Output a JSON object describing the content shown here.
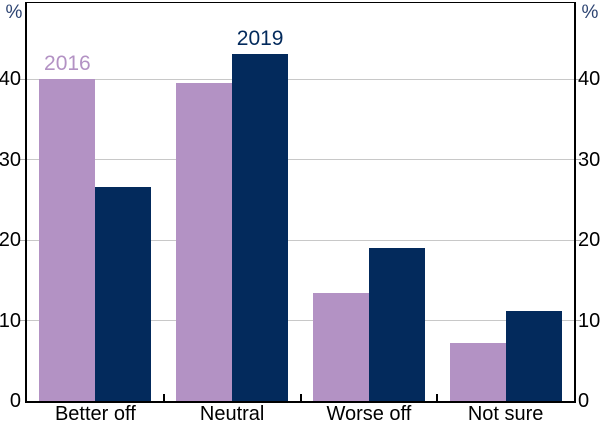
{
  "chart_data": {
    "type": "bar",
    "categories": [
      "Better off",
      "Neutral",
      "Worse off",
      "Not sure"
    ],
    "series": [
      {
        "name": "2016",
        "color": "#b392c4",
        "values": [
          40.0,
          39.6,
          13.4,
          7.2
        ]
      },
      {
        "name": "2019",
        "color": "#032a5c",
        "values": [
          26.6,
          43.2,
          19.0,
          11.2
        ]
      }
    ],
    "series_labels": [
      {
        "text": "2016",
        "series_index": 0,
        "category_index": 0,
        "color": "#b392c4"
      },
      {
        "text": "2019",
        "series_index": 1,
        "category_index": 1,
        "color": "#032a5c"
      }
    ],
    "unit_left": "%",
    "unit_right": "%",
    "yticks": [
      0,
      10,
      20,
      30,
      40
    ],
    "ylim": [
      0,
      49.5
    ],
    "grid": "horizontal",
    "colors": {
      "gridline": "#c8c8c8",
      "axis": "#000000",
      "tick_text": "#000000",
      "unit_text": "#2d4472"
    }
  }
}
